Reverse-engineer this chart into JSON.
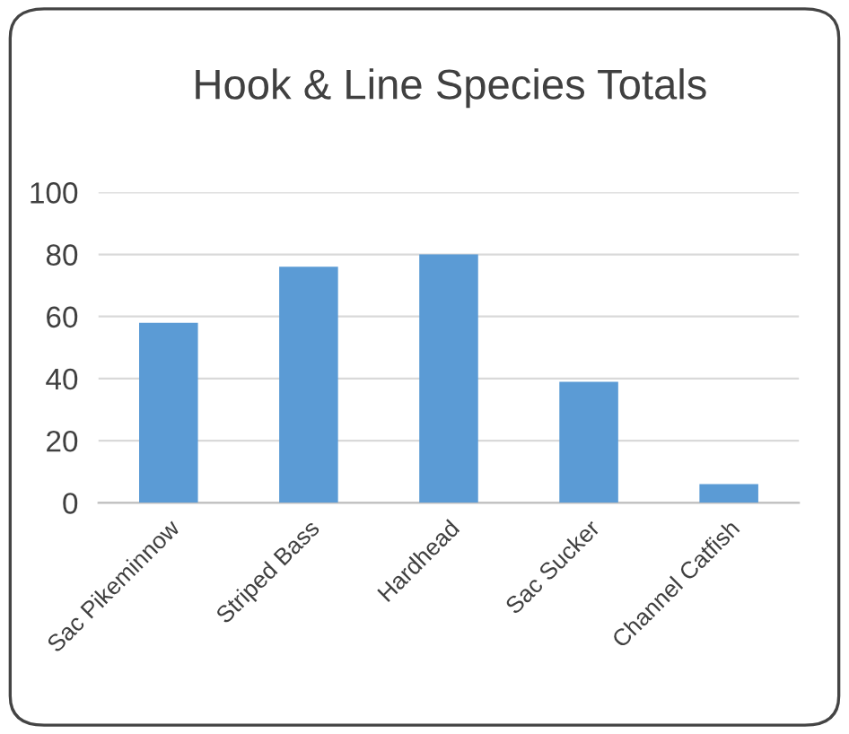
{
  "chart_data": {
    "type": "bar",
    "title": "Hook & Line Species Totals",
    "categories": [
      "Sac Pikeminnow",
      "Striped Bass",
      "Hardhead",
      "Sac Sucker",
      "Channel Catfish"
    ],
    "values": [
      58,
      76,
      80,
      39,
      6
    ],
    "color": "#5b9bd5",
    "ylim": [
      0,
      100
    ],
    "yticks": [
      0,
      20,
      40,
      60,
      80,
      100
    ],
    "grid": "y"
  }
}
